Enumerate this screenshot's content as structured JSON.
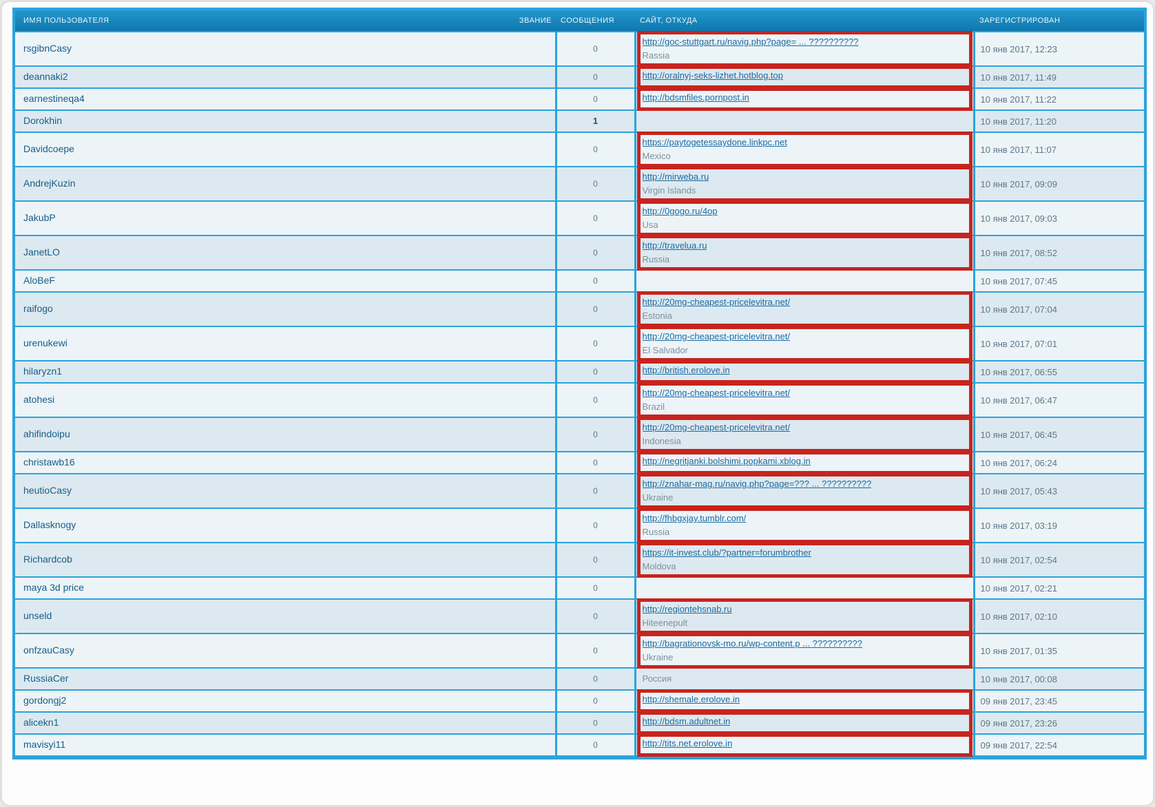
{
  "colors": {
    "table_border": "#2aa3dc",
    "header_top": "#2496ca",
    "header_bottom": "#0d78af",
    "row_light": "#ecf4f8",
    "row_dark": "#dde9f0",
    "username_link": "#175e86",
    "site_link": "#1c6aa0",
    "location_text": "#7d909c",
    "date_text": "#5e7788",
    "annotation_box": "#c8241e"
  },
  "table": {
    "columns": {
      "username": "ИМЯ ПОЛЬЗОВАТЕЛЯ",
      "rank": "ЗВАНИЕ",
      "posts": "СООБЩЕНИЯ",
      "site": "САЙТ, ОТКУДА",
      "registered": "ЗАРЕГИСТРИРОВАН"
    },
    "rows": [
      {
        "username": "rsgibnCasy",
        "posts": "0",
        "site_url": "http://goc-stuttgart.ru/navig.php?page= ... ??????????",
        "site_location": "Rassia",
        "registered": "10 янв 2017, 12:23",
        "boxed": true,
        "tall": true
      },
      {
        "username": "deannaki2",
        "posts": "0",
        "site_url": "http://oralnyj-seks-lizhet.hotblog.top",
        "site_location": "",
        "registered": "10 янв 2017, 11:49",
        "boxed": true,
        "tall": false
      },
      {
        "username": "earnestineqa4",
        "posts": "0",
        "site_url": "http://bdsmfiles.pornpost.in",
        "site_location": "",
        "registered": "10 янв 2017, 11:22",
        "boxed": true,
        "tall": false
      },
      {
        "username": "Dorokhin",
        "posts": "1",
        "posts_bold": true,
        "site_url": "",
        "site_location": "",
        "registered": "10 янв 2017, 11:20",
        "boxed": false,
        "tall": false
      },
      {
        "username": "Davidcoepe",
        "posts": "0",
        "site_url": "https://paytogetessaydone.linkpc.net",
        "site_location": "Mexico",
        "registered": "10 янв 2017, 11:07",
        "boxed": true,
        "tall": true
      },
      {
        "username": "AndrejKuzin",
        "posts": "0",
        "site_url": "http://mirweba.ru",
        "site_location": "Virgin Islands",
        "registered": "10 янв 2017, 09:09",
        "boxed": true,
        "tall": true
      },
      {
        "username": "JakubP",
        "posts": "0",
        "site_url": "http://0gogo.ru/4op",
        "site_location": "Usa",
        "registered": "10 янв 2017, 09:03",
        "boxed": true,
        "tall": true
      },
      {
        "username": "JanetLO",
        "posts": "0",
        "site_url": "http://travelua.ru",
        "site_location": "Russia",
        "registered": "10 янв 2017, 08:52",
        "boxed": true,
        "tall": true
      },
      {
        "username": "AloBeF",
        "posts": "0",
        "site_url": "",
        "site_location": "",
        "registered": "10 янв 2017, 07:45",
        "boxed": false,
        "tall": false
      },
      {
        "username": "raifogo",
        "posts": "0",
        "site_url": "http://20mg-cheapest-pricelevitra.net/",
        "site_location": "Estonia",
        "registered": "10 янв 2017, 07:04",
        "boxed": true,
        "tall": true
      },
      {
        "username": "urenukewi",
        "posts": "0",
        "site_url": "http://20mg-cheapest-pricelevitra.net/",
        "site_location": "El Salvador",
        "registered": "10 янв 2017, 07:01",
        "boxed": true,
        "tall": true
      },
      {
        "username": "hilaryzn1",
        "posts": "0",
        "site_url": "http://british.erolove.in",
        "site_location": "",
        "registered": "10 янв 2017, 06:55",
        "boxed": true,
        "tall": false
      },
      {
        "username": "atohesi",
        "posts": "0",
        "site_url": "http://20mg-cheapest-pricelevitra.net/",
        "site_location": "Brazil",
        "registered": "10 янв 2017, 06:47",
        "boxed": true,
        "tall": true
      },
      {
        "username": "ahifindoipu",
        "posts": "0",
        "site_url": "http://20mg-cheapest-pricelevitra.net/",
        "site_location": "Indonesia",
        "registered": "10 янв 2017, 06:45",
        "boxed": true,
        "tall": true
      },
      {
        "username": "christawb16",
        "posts": "0",
        "site_url": "http://negritjanki.bolshimi.popkami.xblog.in",
        "site_location": "",
        "registered": "10 янв 2017, 06:24",
        "boxed": true,
        "tall": false
      },
      {
        "username": "heutioCasy",
        "posts": "0",
        "site_url": "http://znahar-mag.ru/navig.php?page=??? ... ??????????",
        "site_location": "Ukraine",
        "registered": "10 янв 2017, 05:43",
        "boxed": true,
        "tall": true
      },
      {
        "username": "Dallasknogy",
        "posts": "0",
        "site_url": "http://fhbgxjay.tumblr.com/",
        "site_location": "Russia",
        "registered": "10 янв 2017, 03:19",
        "boxed": true,
        "tall": true
      },
      {
        "username": "Richardcob",
        "posts": "0",
        "site_url": "https://it-invest.club/?partner=forumbrother",
        "site_location": "Moldova",
        "registered": "10 янв 2017, 02:54",
        "boxed": true,
        "tall": true
      },
      {
        "username": "maya 3d price",
        "posts": "0",
        "site_url": "",
        "site_location": "",
        "registered": "10 янв 2017, 02:21",
        "boxed": false,
        "tall": false
      },
      {
        "username": "unseld",
        "posts": "0",
        "site_url": "http://regiontehsnab.ru",
        "site_location": "Hiteenepult",
        "registered": "10 янв 2017, 02:10",
        "boxed": true,
        "tall": true
      },
      {
        "username": "onfzauCasy",
        "posts": "0",
        "site_url": "http://bagrationovsk-mo.ru/wp-content.p ... ??????????",
        "site_location": "Ukraine",
        "registered": "10 янв 2017, 01:35",
        "boxed": true,
        "tall": true
      },
      {
        "username": "RussiaCer",
        "posts": "0",
        "site_url": "",
        "site_location": "Россия",
        "registered": "10 янв 2017, 00:08",
        "boxed": false,
        "tall": false
      },
      {
        "username": "gordongj2",
        "posts": "0",
        "site_url": "http://shemale.erolove.in",
        "site_location": "",
        "registered": "09 янв 2017, 23:45",
        "boxed": true,
        "tall": false
      },
      {
        "username": "alicekn1",
        "posts": "0",
        "site_url": "http://bdsm.adultnet.in",
        "site_location": "",
        "registered": "09 янв 2017, 23:26",
        "boxed": true,
        "tall": false
      },
      {
        "username": "mavisyi11",
        "posts": "0",
        "site_url": "http://tits.net.erolove.in",
        "site_location": "",
        "registered": "09 янв 2017, 22:54",
        "boxed": true,
        "tall": false
      }
    ]
  }
}
